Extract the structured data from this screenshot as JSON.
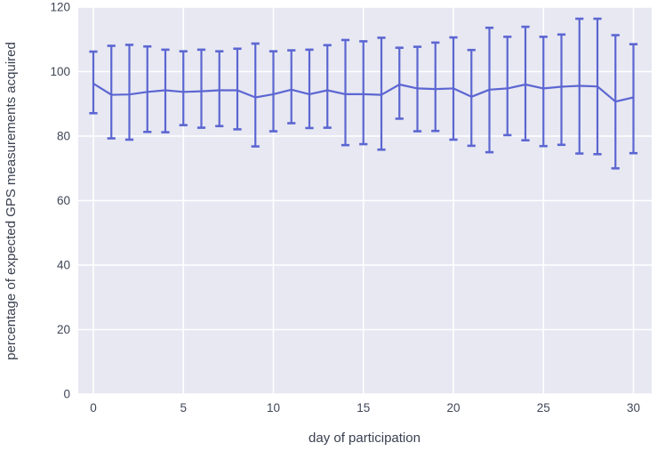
{
  "chart_data": {
    "type": "line",
    "title": "",
    "xlabel": "day of participation",
    "ylabel": "percentage of expected GPS measurements acquired",
    "x": [
      0,
      1,
      2,
      3,
      4,
      5,
      6,
      7,
      8,
      9,
      10,
      11,
      12,
      13,
      14,
      15,
      16,
      17,
      18,
      19,
      20,
      21,
      22,
      23,
      24,
      25,
      26,
      27,
      28,
      29,
      30
    ],
    "series": [
      {
        "name": "mean percentage acquired",
        "values": [
          96.3,
          92.8,
          92.9,
          93.7,
          94.2,
          93.7,
          93.9,
          94.2,
          94.2,
          92.0,
          93.0,
          94.4,
          93.0,
          94.2,
          93.0,
          93.0,
          92.8,
          96.0,
          94.8,
          94.6,
          94.8,
          92.2,
          94.4,
          94.8,
          96.0,
          94.8,
          95.3,
          95.6,
          95.4,
          90.7,
          92.0
        ]
      },
      {
        "name": "error bar upper",
        "values": [
          106.2,
          108.0,
          108.3,
          107.8,
          106.8,
          106.3,
          106.8,
          106.3,
          107.1,
          108.7,
          106.3,
          106.6,
          106.8,
          108.2,
          109.8,
          109.4,
          110.5,
          107.4,
          107.7,
          109.0,
          110.6,
          106.7,
          113.6,
          110.8,
          113.9,
          110.8,
          111.5,
          116.4,
          116.4,
          111.3,
          108.5
        ]
      },
      {
        "name": "error bar lower",
        "values": [
          87.1,
          79.3,
          78.9,
          81.3,
          81.2,
          83.4,
          82.6,
          83.1,
          82.1,
          76.8,
          81.5,
          84.0,
          82.5,
          82.6,
          77.2,
          77.5,
          75.8,
          85.4,
          81.5,
          81.6,
          78.9,
          77.0,
          75.0,
          80.3,
          78.7,
          76.9,
          77.3,
          74.6,
          74.4,
          70.0,
          74.7
        ]
      }
    ],
    "error_bars": true,
    "x_ticks": [
      0,
      5,
      10,
      15,
      20,
      25,
      30
    ],
    "y_ticks": [
      0,
      20,
      40,
      60,
      80,
      100,
      120
    ],
    "ylim": [
      0,
      120
    ],
    "xlim": [
      -0.85,
      31.0
    ],
    "grid": true,
    "legend": false,
    "colors": {
      "series": "#5c66d2",
      "plot_bg": "#e7e8f2",
      "grid": "#ffffff",
      "tick_text": "#3f4656",
      "label_text": "#3a4150",
      "figure_bg": "#ffffff"
    }
  }
}
